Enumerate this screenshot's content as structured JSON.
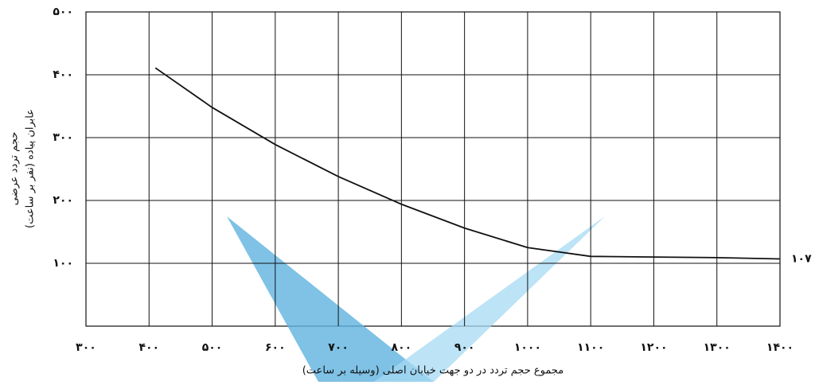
{
  "chart_data": {
    "type": "line",
    "x_label": "مجموع حجم تردد در دو جهت خیابان اصلی (وسیله بر ساعت)",
    "y_label": [
      "حجم تردد عرضی",
      "عابران پیاده (نفر بر ساعت)"
    ],
    "x": [
      410,
      500,
      600,
      700,
      800,
      900,
      1000,
      1100,
      1200,
      1300,
      1400
    ],
    "values": [
      411,
      348,
      289,
      238,
      194,
      156,
      125,
      111,
      110,
      109,
      107
    ],
    "color": "#111111",
    "xlim": [
      300,
      1400
    ],
    "xticks": [
      {
        "value": 300,
        "label": "۳۰۰"
      },
      {
        "value": 400,
        "label": "۴۰۰"
      },
      {
        "value": 500,
        "label": "۵۰۰"
      },
      {
        "value": 600,
        "label": "۶۰۰"
      },
      {
        "value": 700,
        "label": "۷۰۰"
      },
      {
        "value": 800,
        "label": "۸۰۰"
      },
      {
        "value": 900,
        "label": "۹۰۰"
      },
      {
        "value": 1000,
        "label": "۱۰۰۰"
      },
      {
        "value": 1100,
        "label": "۱۱۰۰"
      },
      {
        "value": 1200,
        "label": "۱۲۰۰"
      },
      {
        "value": 1300,
        "label": "۱۳۰۰"
      },
      {
        "value": 1400,
        "label": "۱۴۰۰"
      }
    ],
    "ylim": [
      0,
      500
    ],
    "yticks": [
      {
        "value": 100,
        "label": "۱۰۰"
      },
      {
        "value": 200,
        "label": "۲۰۰"
      },
      {
        "value": 300,
        "label": "۳۰۰"
      },
      {
        "value": 400,
        "label": "۴۰۰"
      },
      {
        "value": 500,
        "label": "۵۰۰"
      }
    ],
    "grid": true,
    "annotations": [
      {
        "x": 1400,
        "y": 107,
        "text": "۱۰۷"
      }
    ]
  }
}
